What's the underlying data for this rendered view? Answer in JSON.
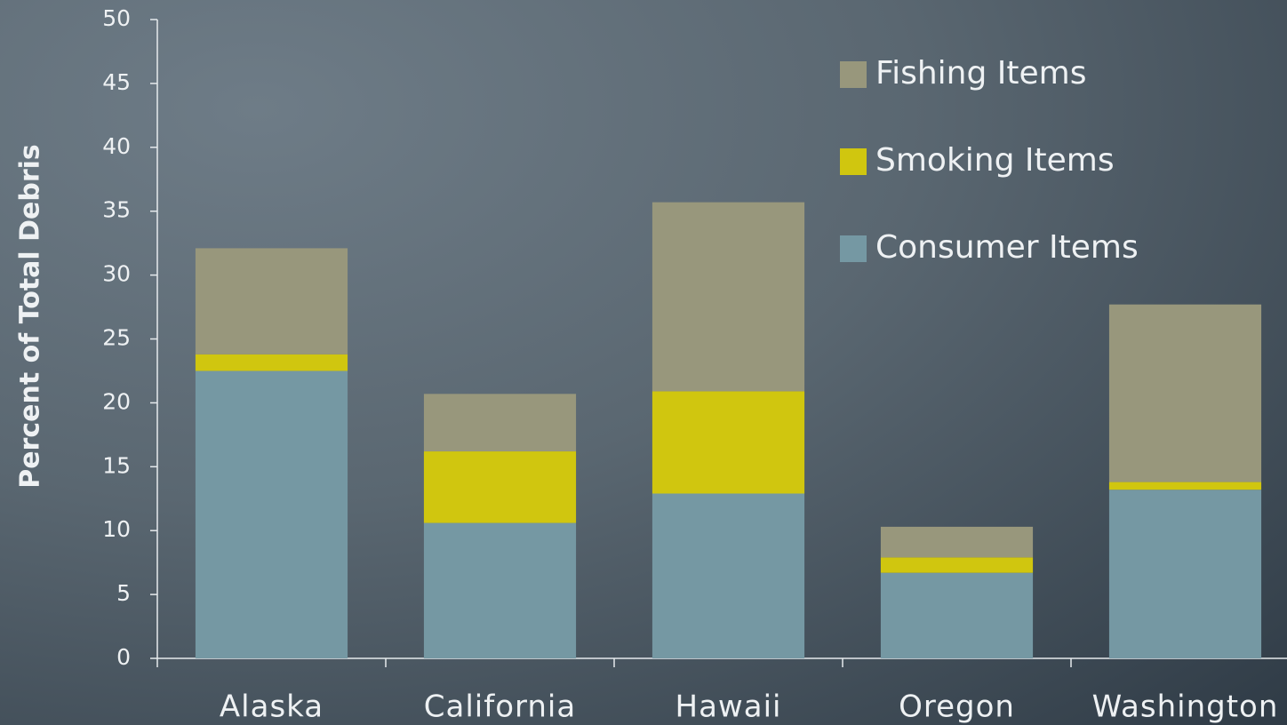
{
  "chart_data": {
    "type": "stacked_bar",
    "y_label": "Percent of Total Debris",
    "categories": [
      "Alaska",
      "California",
      "Hawaii",
      "Oregon",
      "Washington"
    ],
    "series": [
      {
        "name": "Consumer Items",
        "color": "#7598a3",
        "values": [
          22.5,
          10.6,
          12.9,
          6.7,
          13.2
        ]
      },
      {
        "name": "Smoking Items",
        "color": "#d0c60f",
        "values": [
          1.3,
          5.6,
          8.0,
          1.2,
          0.6
        ]
      },
      {
        "name": "Fishing Items",
        "color": "#98977c",
        "values": [
          8.3,
          4.5,
          14.8,
          2.4,
          13.9
        ]
      }
    ],
    "ylim": [
      0,
      50
    ],
    "yticks": [
      0,
      5,
      10,
      15,
      20,
      25,
      30,
      35,
      40,
      45,
      50
    ],
    "legend": "upper right"
  }
}
